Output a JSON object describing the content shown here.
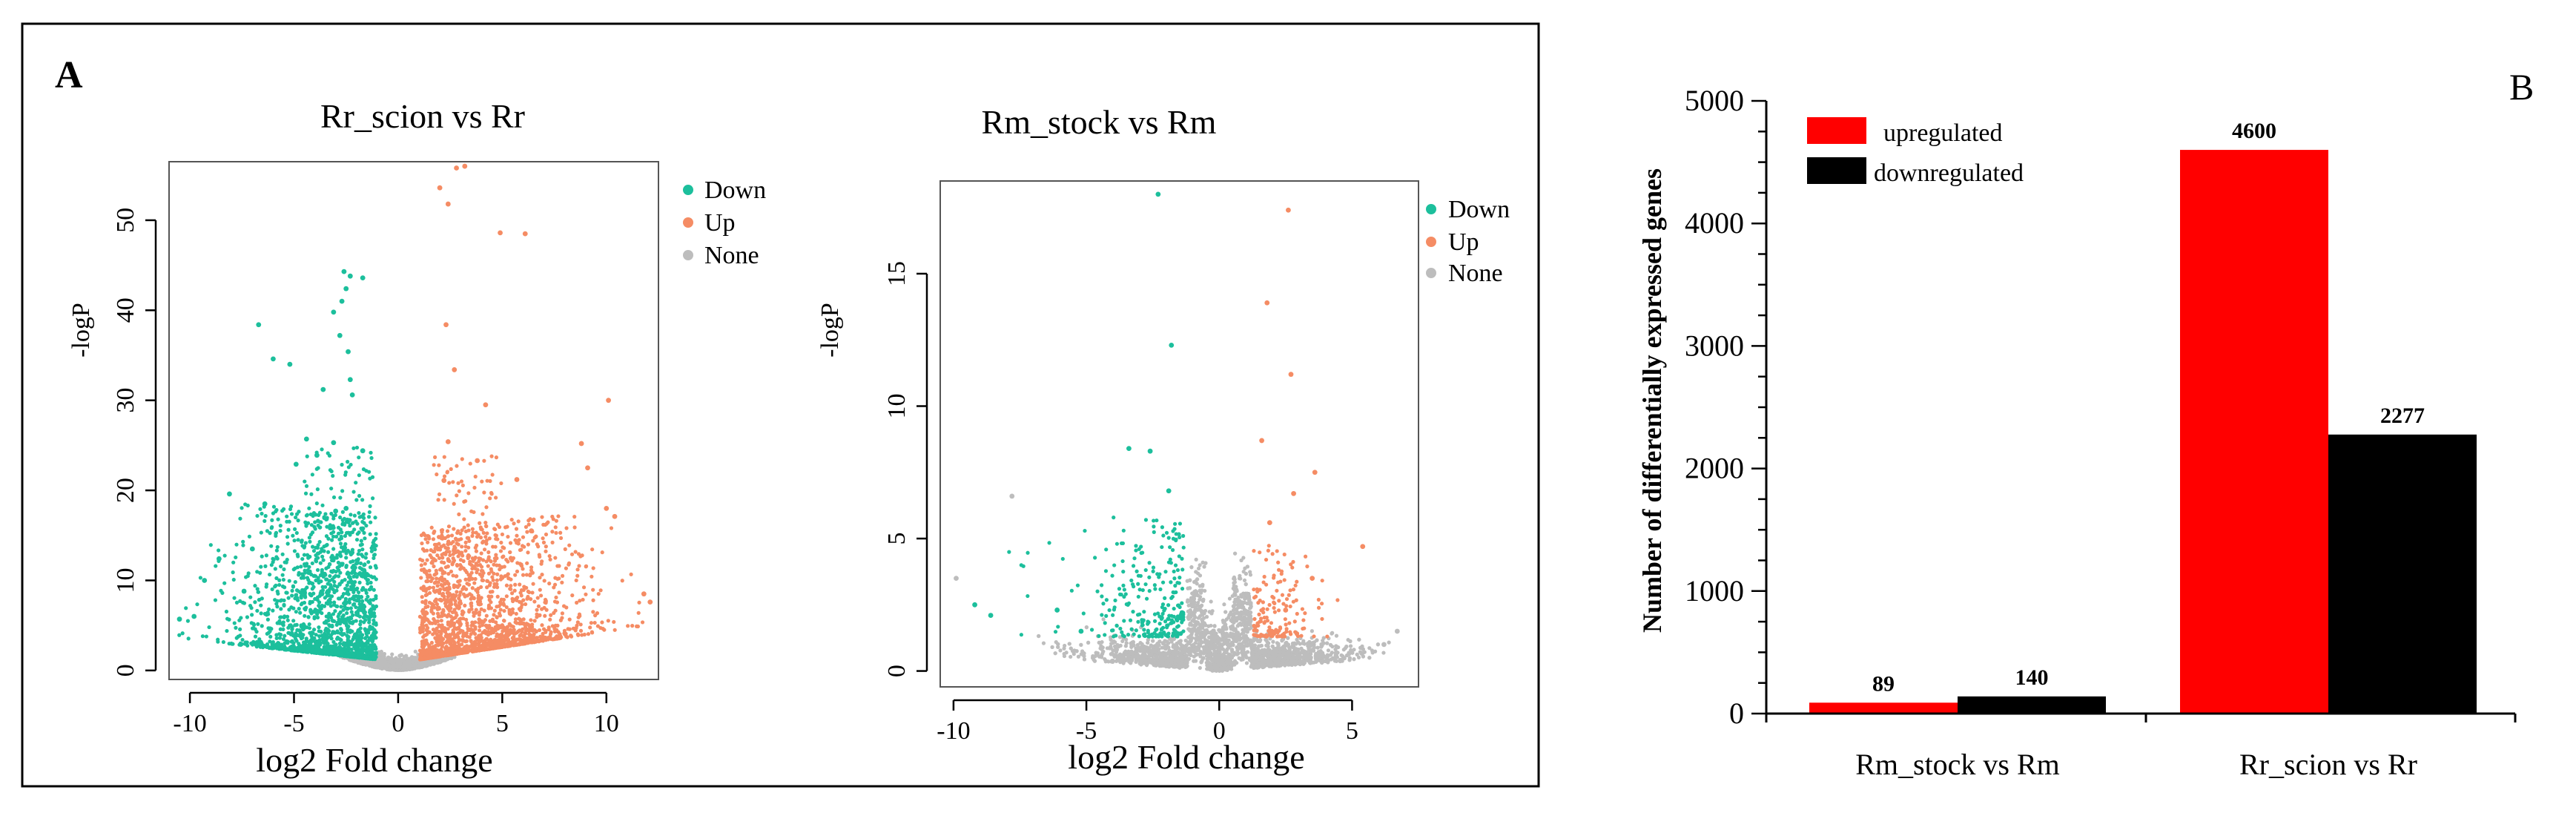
{
  "panels": {
    "a_label": "A",
    "b_label": "B"
  },
  "chart_data": [
    {
      "type": "scatter",
      "title": "Rr_scion vs Rr",
      "xlabel": "log2 Fold change",
      "ylabel": "-logP",
      "xlim": [
        -11,
        12.5
      ],
      "ylim": [
        -1,
        56.5
      ],
      "xticks": [
        -10,
        -5,
        0,
        5,
        10
      ],
      "yticks": [
        0,
        10,
        20,
        30,
        40,
        50
      ],
      "grid": false,
      "legend_position": "right",
      "legend": [
        "Down",
        "Up",
        "None"
      ],
      "colors": {
        "Down": "#1cbf9c",
        "Up": "#f58c64",
        "None": "#bdbdbd"
      },
      "series": [
        {
          "name": "Down",
          "points": [
            [
              -2.6,
              44.3
            ],
            [
              -2.3,
              43.8
            ],
            [
              -1.7,
              43.6
            ],
            [
              -2.5,
              42.4
            ],
            [
              -2.7,
              41.0
            ],
            [
              -3.1,
              39.8
            ],
            [
              -6.7,
              38.4
            ],
            [
              -2.8,
              37.2
            ],
            [
              -2.4,
              35.4
            ],
            [
              -6.0,
              34.6
            ],
            [
              -5.2,
              34.0
            ],
            [
              -2.3,
              32.3
            ],
            [
              -3.6,
              31.2
            ],
            [
              -2.2,
              30.6
            ],
            [
              -4.4,
              25.7
            ],
            [
              -3.1,
              25.3
            ],
            [
              -1.7,
              24.4
            ],
            [
              -3.9,
              23.9
            ],
            [
              -4.9,
              22.9
            ],
            [
              -8.1,
              19.6
            ],
            [
              -6.4,
              18.5
            ],
            [
              -2.5,
              18.0
            ],
            [
              -3.0,
              17.7
            ],
            [
              -7.0,
              13.5
            ],
            [
              -8.6,
              12.4
            ],
            [
              -9.3,
              10.0
            ],
            [
              -7.4,
              8.8
            ],
            [
              -9.8,
              6.0
            ],
            [
              -10.5,
              5.7
            ]
          ]
        },
        {
          "name": "Up",
          "points": [
            [
              2.8,
              55.8
            ],
            [
              3.2,
              56.0
            ],
            [
              2.4,
              51.8
            ],
            [
              2.0,
              53.6
            ],
            [
              4.9,
              48.6
            ],
            [
              6.1,
              48.5
            ],
            [
              2.3,
              38.4
            ],
            [
              2.7,
              33.4
            ],
            [
              10.1,
              30.0
            ],
            [
              4.2,
              29.5
            ],
            [
              2.4,
              25.4
            ],
            [
              8.8,
              25.2
            ],
            [
              3.8,
              23.3
            ],
            [
              9.1,
              22.5
            ],
            [
              2.2,
              21.1
            ],
            [
              5.7,
              21.2
            ],
            [
              10.0,
              18.0
            ],
            [
              10.4,
              17.1
            ],
            [
              6.4,
              15.5
            ],
            [
              11.8,
              8.5
            ],
            [
              12.1,
              7.6
            ]
          ]
        },
        {
          "name": "None",
          "points": []
        }
      ]
    },
    {
      "type": "scatter",
      "title": "Rm_stock vs Rm",
      "xlabel": "log2 Fold change",
      "ylabel": "-logP",
      "xlim": [
        -10.5,
        7.5
      ],
      "ylim": [
        -0.6,
        18.5
      ],
      "xticks": [
        -10,
        -5,
        0,
        5
      ],
      "yticks": [
        0,
        5,
        10,
        15
      ],
      "grid": false,
      "legend_position": "right",
      "legend": [
        "Down",
        "Up",
        "None"
      ],
      "colors": {
        "Down": "#1cbf9c",
        "Up": "#f58c64",
        "None": "#bdbdbd"
      },
      "series": [
        {
          "name": "Down",
          "points": [
            [
              -2.3,
              18.0
            ],
            [
              -1.8,
              12.3
            ],
            [
              -3.4,
              8.4
            ],
            [
              -2.6,
              8.3
            ],
            [
              -1.9,
              6.8
            ],
            [
              -9.2,
              2.5
            ],
            [
              -8.6,
              2.1
            ],
            [
              -6.1,
              2.3
            ],
            [
              -5.2,
              1.5
            ],
            [
              -1.4,
              2.2
            ]
          ]
        },
        {
          "name": "Up",
          "points": [
            [
              2.6,
              17.4
            ],
            [
              1.8,
              13.9
            ],
            [
              2.7,
              11.2
            ],
            [
              1.6,
              8.7
            ],
            [
              3.6,
              7.5
            ],
            [
              2.8,
              6.7
            ],
            [
              1.9,
              5.6
            ],
            [
              5.4,
              4.7
            ],
            [
              3.5,
              3.5
            ],
            [
              2.5,
              2.3
            ]
          ]
        },
        {
          "name": "None",
          "points": [
            [
              -9.9,
              3.5
            ],
            [
              -7.8,
              6.6
            ],
            [
              6.7,
              1.5
            ],
            [
              6.2,
              1.0
            ]
          ]
        }
      ]
    },
    {
      "type": "bar",
      "categories": [
        "Rm_stock vs Rm",
        "Rr_scion vs Rr"
      ],
      "series": [
        {
          "name": "upregulated",
          "values": [
            89,
            4600
          ],
          "color": "#ff0000"
        },
        {
          "name": "downregulated",
          "values": [
            140,
            2277
          ],
          "color": "#000000"
        }
      ],
      "data_labels": [
        [
          "89",
          "140"
        ],
        [
          "4600",
          "2277"
        ]
      ],
      "title": "",
      "xlabel": "",
      "ylabel": "Number of  differentially  expressed genes",
      "ylim": [
        0,
        5000
      ],
      "yticks": [
        0,
        1000,
        2000,
        3000,
        4000,
        5000
      ],
      "grid": false,
      "legend_position": "top-left"
    }
  ]
}
